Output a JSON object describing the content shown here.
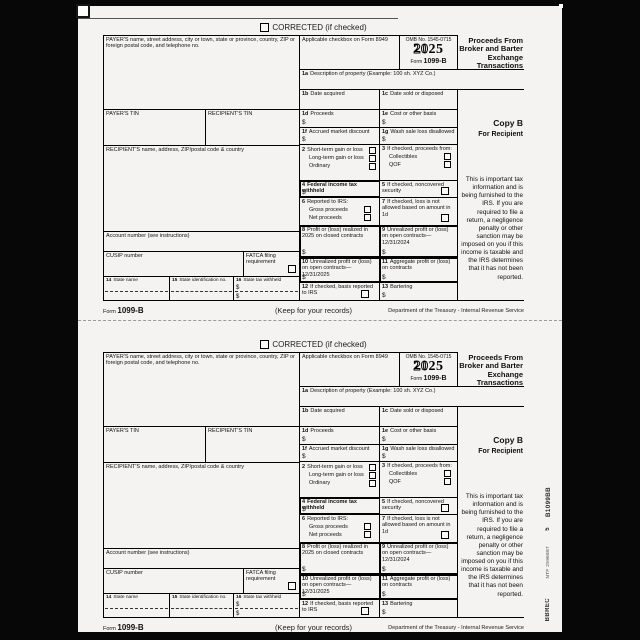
{
  "form": {
    "corrected": "CORRECTED (if checked)",
    "dollar": "$",
    "payer_label": "PAYER'S name, street address, city or town, state or province, country, ZIP or foreign postal code, and telephone no.",
    "payers_tin": "PAYER'S TIN",
    "recipients_tin": "RECIPIENT'S TIN",
    "recipient_label": "RECIPIENT'S name, address, ZIP/postal code & country",
    "account_label": "Account number (see instructions)",
    "cusip_label": "CUSIP number",
    "fatca_label": "FATCA filing requirement",
    "header": {
      "applicable_checkbox": "Applicable checkbox on Form 8949",
      "omb": "OMB No. 1545-0715",
      "year_outline": "20",
      "year_solid": "25",
      "form_word": "Form",
      "form_number": "1099-B",
      "title": "Proceeds From Broker and Barter Exchange Transactions"
    },
    "box1a": {
      "num": "1a",
      "label": "Description of property (Example: 100 sh. XYZ Co.)"
    },
    "box1b": {
      "num": "1b",
      "label": "Date acquired"
    },
    "box1c": {
      "num": "1c",
      "label": "Date sold or disposed"
    },
    "box1d": {
      "num": "1d",
      "label": "Proceeds"
    },
    "box1e": {
      "num": "1e",
      "label": "Cost or other basis"
    },
    "box1f": {
      "num": "1f",
      "label": "Accrued market discount"
    },
    "box1g": {
      "num": "1g",
      "label": "Wash sale loss disallowed"
    },
    "box2": {
      "num": "2",
      "items": [
        "Short-term gain or loss",
        "Long-term gain or loss",
        "Ordinary"
      ]
    },
    "box3": {
      "num": "3",
      "label": "If checked, proceeds from:",
      "items": [
        "Collectibles",
        "QOF"
      ]
    },
    "box4": {
      "num": "4",
      "label": "Federal income tax withheld"
    },
    "box5": {
      "num": "5",
      "label": "If checked, noncovered security"
    },
    "box6": {
      "num": "6",
      "label": "Reported to IRS:",
      "items": [
        "Gross proceeds",
        "Net proceeds"
      ]
    },
    "box7": {
      "num": "7",
      "label": "If checked, loss is not allowed based on amount in 1d"
    },
    "box8": {
      "num": "8",
      "label": "Profit or (loss) realized in 2025 on closed contracts"
    },
    "box9": {
      "num": "9",
      "label": "Unrealized profit or (loss) on open contracts—12/31/2024"
    },
    "box10": {
      "num": "10",
      "label": "Unrealized profit or (loss) on open contracts—12/31/2025"
    },
    "box11": {
      "num": "11",
      "label": "Aggregate profit or (loss) on contracts"
    },
    "box12": {
      "num": "12",
      "label": "If checked, basis reported to IRS"
    },
    "box13": {
      "num": "13",
      "label": "Bartering"
    },
    "box14": {
      "num": "14",
      "label": "State name"
    },
    "box15": {
      "num": "15",
      "label": "State identification no."
    },
    "box16": {
      "num": "16",
      "label": "State tax withheld"
    },
    "copy": {
      "copy_b": "Copy B",
      "for_recipient": "For Recipient",
      "statement": "This is important tax information and is being furnished to the IRS. If you are required to file a return, a negligence penalty or other sanction may be imposed on you if this income is taxable and the IRS determines that it has not been reported."
    },
    "footer": {
      "form_word": "Form",
      "form_number": "1099-B",
      "keep": "(Keep for your records)",
      "dept": "Department of the Treasury - Internal Revenue Service"
    }
  },
  "print_marks": {
    "bbrec": "BBREC",
    "ntf": "NTF 2596887",
    "sheet_num": "5",
    "product_code": "B1099BB"
  }
}
